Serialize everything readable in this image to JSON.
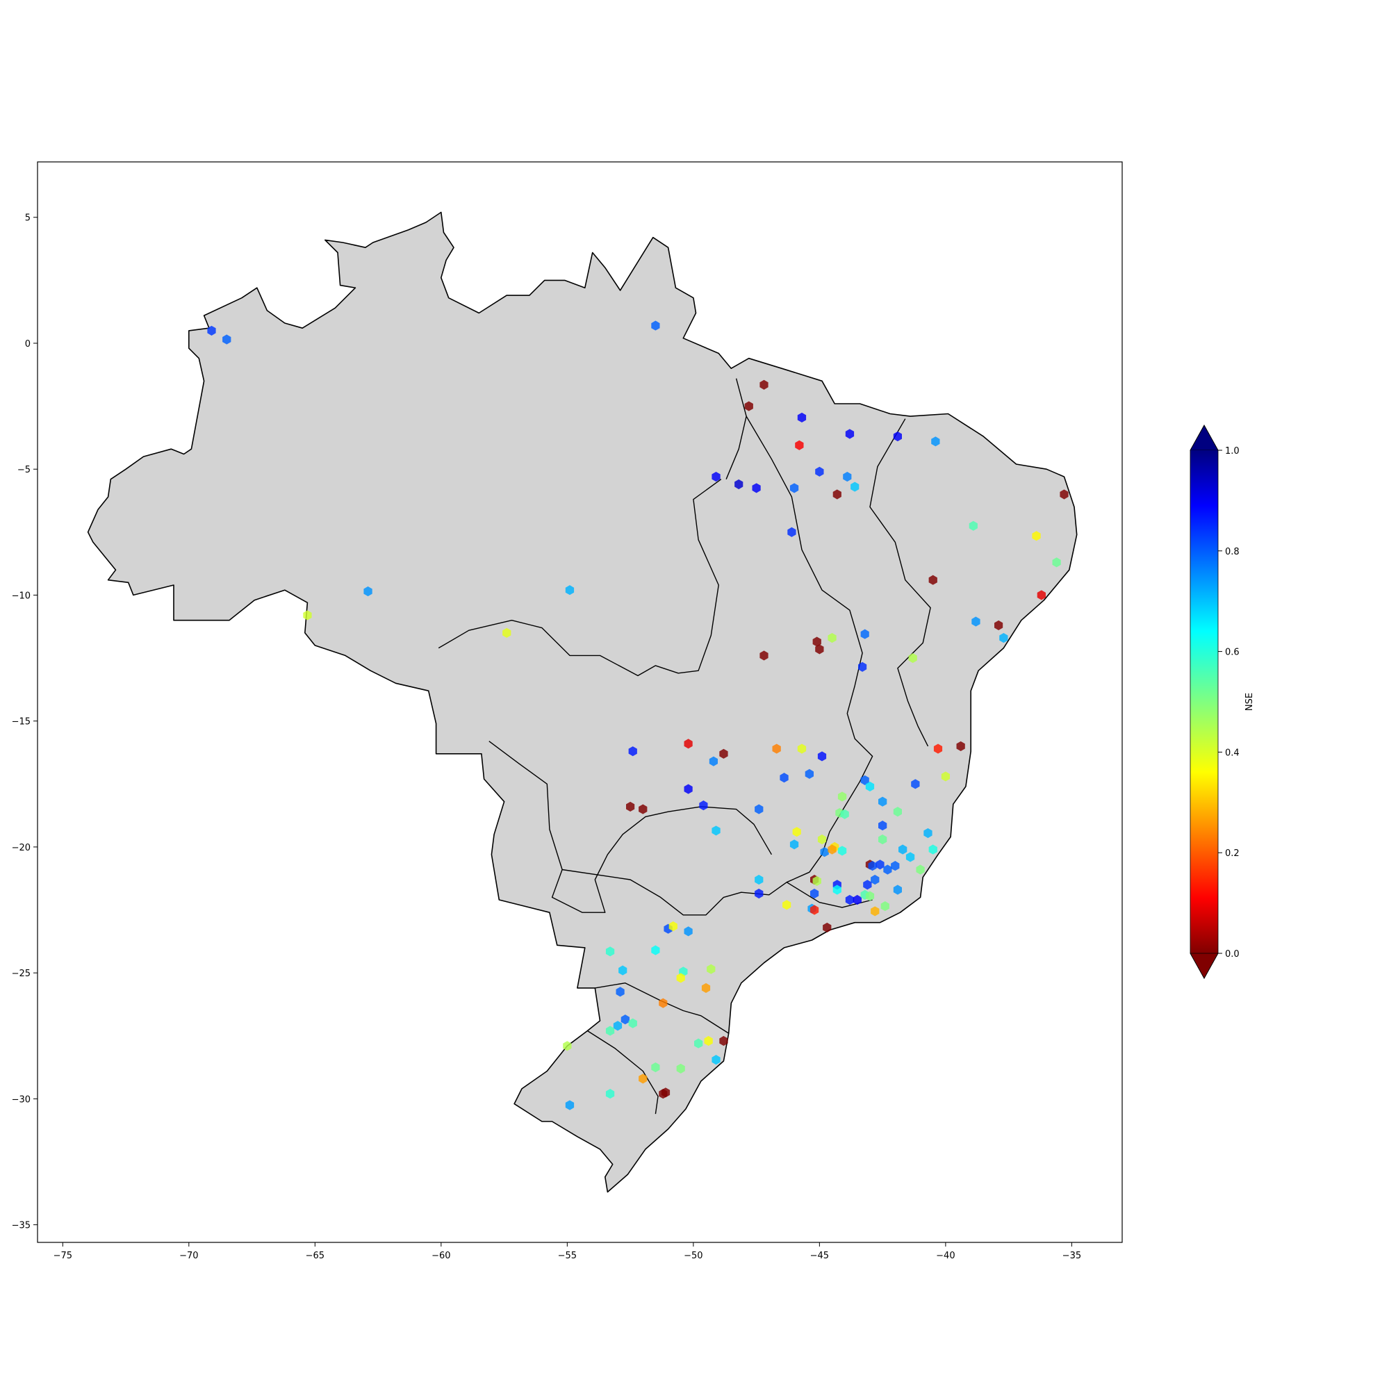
{
  "chart_data": {
    "type": "scatter",
    "title": "",
    "xlabel": "",
    "ylabel": "",
    "xlim": [
      -76,
      -33
    ],
    "ylim": [
      -35.7,
      7.2
    ],
    "x_ticks": [
      {
        "value": -75,
        "label": "−75"
      },
      {
        "value": -70,
        "label": "−70"
      },
      {
        "value": -65,
        "label": "−65"
      },
      {
        "value": -60,
        "label": "−60"
      },
      {
        "value": -55,
        "label": "−55"
      },
      {
        "value": -50,
        "label": "−50"
      },
      {
        "value": -45,
        "label": "−45"
      },
      {
        "value": -40,
        "label": "−40"
      },
      {
        "value": -35,
        "label": "−35"
      }
    ],
    "y_ticks": [
      {
        "value": 5,
        "label": "5"
      },
      {
        "value": 0,
        "label": "0"
      },
      {
        "value": -5,
        "label": "−5"
      },
      {
        "value": -10,
        "label": "−10"
      },
      {
        "value": -15,
        "label": "−15"
      },
      {
        "value": -20,
        "label": "−20"
      },
      {
        "value": -25,
        "label": "−25"
      },
      {
        "value": -30,
        "label": "−30"
      },
      {
        "value": -35,
        "label": "−35"
      }
    ],
    "grid": false,
    "basemap": {
      "fill": "#d3d3d3",
      "edge": "#000000"
    },
    "colorbar": {
      "label": "NSE",
      "colormap": "jet",
      "vmin": 0.0,
      "vmax": 1.0,
      "extend": "both",
      "placement": "right",
      "ticks": [
        {
          "value": 0.0,
          "label": "0.0"
        },
        {
          "value": 0.2,
          "label": "0.2"
        },
        {
          "value": 0.4,
          "label": "0.4"
        },
        {
          "value": 0.6,
          "label": "0.6"
        },
        {
          "value": 0.8,
          "label": "0.8"
        },
        {
          "value": 1.0,
          "label": "1.0"
        }
      ]
    },
    "marker": "hexagon",
    "points": [
      {
        "lon": -69.1,
        "lat": 0.5,
        "nse": 0.82
      },
      {
        "lon": -68.5,
        "lat": 0.15,
        "nse": 0.78
      },
      {
        "lon": -51.5,
        "lat": 0.7,
        "nse": 0.78
      },
      {
        "lon": -47.2,
        "lat": -1.65,
        "nse": -0.05
      },
      {
        "lon": -47.8,
        "lat": -2.5,
        "nse": -0.05
      },
      {
        "lon": -45.7,
        "lat": -2.95,
        "nse": 0.88
      },
      {
        "lon": -45.8,
        "lat": -4.05,
        "nse": 0.12
      },
      {
        "lon": -43.8,
        "lat": -3.6,
        "nse": 0.88
      },
      {
        "lon": -41.9,
        "lat": -3.7,
        "nse": 0.88
      },
      {
        "lon": -40.4,
        "lat": -3.9,
        "nse": 0.73
      },
      {
        "lon": -49.1,
        "lat": -5.3,
        "nse": 0.88
      },
      {
        "lon": -48.2,
        "lat": -5.6,
        "nse": 0.92
      },
      {
        "lon": -47.5,
        "lat": -5.75,
        "nse": 0.88
      },
      {
        "lon": -46.0,
        "lat": -5.75,
        "nse": 0.78
      },
      {
        "lon": -45.0,
        "lat": -5.1,
        "nse": 0.83
      },
      {
        "lon": -44.3,
        "lat": -6.0,
        "nse": -0.05
      },
      {
        "lon": -43.9,
        "lat": -5.3,
        "nse": 0.75
      },
      {
        "lon": -43.6,
        "lat": -5.7,
        "nse": 0.68
      },
      {
        "lon": -35.3,
        "lat": -6.0,
        "nse": -0.05
      },
      {
        "lon": -46.1,
        "lat": -7.5,
        "nse": 0.83
      },
      {
        "lon": -38.9,
        "lat": -7.25,
        "nse": 0.55
      },
      {
        "lon": -36.4,
        "lat": -7.65,
        "nse": 0.37
      },
      {
        "lon": -35.6,
        "lat": -8.7,
        "nse": 0.52
      },
      {
        "lon": -40.5,
        "lat": -9.4,
        "nse": -0.05
      },
      {
        "lon": -36.2,
        "lat": -10.0,
        "nse": 0.1
      },
      {
        "lon": -62.9,
        "lat": -9.85,
        "nse": 0.73
      },
      {
        "lon": -54.9,
        "lat": -9.8,
        "nse": 0.7
      },
      {
        "lon": -65.3,
        "lat": -10.8,
        "nse": 0.42
      },
      {
        "lon": -57.4,
        "lat": -11.5,
        "nse": 0.4
      },
      {
        "lon": -38.8,
        "lat": -11.05,
        "nse": 0.73
      },
      {
        "lon": -37.9,
        "lat": -11.2,
        "nse": -0.05
      },
      {
        "lon": -37.7,
        "lat": -11.7,
        "nse": 0.7
      },
      {
        "lon": -45.1,
        "lat": -11.85,
        "nse": -0.05
      },
      {
        "lon": -45.0,
        "lat": -12.15,
        "nse": -0.05
      },
      {
        "lon": -44.5,
        "lat": -11.7,
        "nse": 0.45
      },
      {
        "lon": -43.2,
        "lat": -11.55,
        "nse": 0.77
      },
      {
        "lon": -47.2,
        "lat": -12.4,
        "nse": -0.05
      },
      {
        "lon": -43.3,
        "lat": -12.85,
        "nse": 0.83
      },
      {
        "lon": -41.3,
        "lat": -12.5,
        "nse": 0.45
      },
      {
        "lon": -52.4,
        "lat": -16.2,
        "nse": 0.85
      },
      {
        "lon": -50.2,
        "lat": -15.9,
        "nse": 0.1
      },
      {
        "lon": -48.8,
        "lat": -16.3,
        "nse": -0.05
      },
      {
        "lon": -49.2,
        "lat": -16.6,
        "nse": 0.75
      },
      {
        "lon": -46.7,
        "lat": -16.1,
        "nse": 0.25
      },
      {
        "lon": -45.7,
        "lat": -16.1,
        "nse": 0.4
      },
      {
        "lon": -44.9,
        "lat": -16.4,
        "nse": 0.86
      },
      {
        "lon": -46.4,
        "lat": -17.25,
        "nse": 0.8
      },
      {
        "lon": -45.4,
        "lat": -17.1,
        "nse": 0.78
      },
      {
        "lon": -40.3,
        "lat": -16.1,
        "nse": 0.15
      },
      {
        "lon": -39.4,
        "lat": -16.0,
        "nse": -0.05
      },
      {
        "lon": -40.0,
        "lat": -17.2,
        "nse": 0.42
      },
      {
        "lon": -41.2,
        "lat": -17.5,
        "nse": 0.8
      },
      {
        "lon": -43.2,
        "lat": -17.35,
        "nse": 0.78
      },
      {
        "lon": -43.0,
        "lat": -17.6,
        "nse": 0.65
      },
      {
        "lon": -44.1,
        "lat": -18.0,
        "nse": 0.48
      },
      {
        "lon": -52.5,
        "lat": -18.4,
        "nse": -0.05
      },
      {
        "lon": -52.0,
        "lat": -18.5,
        "nse": -0.05
      },
      {
        "lon": -50.2,
        "lat": -17.7,
        "nse": 0.88
      },
      {
        "lon": -49.6,
        "lat": -18.35,
        "nse": 0.85
      },
      {
        "lon": -47.4,
        "lat": -18.5,
        "nse": 0.78
      },
      {
        "lon": -44.2,
        "lat": -18.65,
        "nse": 0.5
      },
      {
        "lon": -44.0,
        "lat": -18.7,
        "nse": 0.55
      },
      {
        "lon": -42.5,
        "lat": -18.2,
        "nse": 0.73
      },
      {
        "lon": -41.9,
        "lat": -18.6,
        "nse": 0.52
      },
      {
        "lon": -42.5,
        "lat": -19.15,
        "nse": 0.8
      },
      {
        "lon": -40.7,
        "lat": -19.45,
        "nse": 0.7
      },
      {
        "lon": -49.1,
        "lat": -19.35,
        "nse": 0.68
      },
      {
        "lon": -45.9,
        "lat": -19.4,
        "nse": 0.38
      },
      {
        "lon": -46.0,
        "lat": -19.9,
        "nse": 0.7
      },
      {
        "lon": -44.9,
        "lat": -19.7,
        "nse": 0.42
      },
      {
        "lon": -44.8,
        "lat": -20.2,
        "nse": 0.75
      },
      {
        "lon": -44.4,
        "lat": -20.0,
        "nse": 0.35
      },
      {
        "lon": -44.5,
        "lat": -20.1,
        "nse": 0.28
      },
      {
        "lon": -44.1,
        "lat": -20.15,
        "nse": 0.6
      },
      {
        "lon": -42.5,
        "lat": -19.7,
        "nse": 0.52
      },
      {
        "lon": -41.7,
        "lat": -20.1,
        "nse": 0.7
      },
      {
        "lon": -41.4,
        "lat": -20.4,
        "nse": 0.68
      },
      {
        "lon": -40.5,
        "lat": -20.1,
        "nse": 0.6
      },
      {
        "lon": -41.0,
        "lat": -20.9,
        "nse": 0.5
      },
      {
        "lon": -43.0,
        "lat": -20.7,
        "nse": -0.05
      },
      {
        "lon": -42.9,
        "lat": -20.75,
        "nse": 0.8
      },
      {
        "lon": -42.6,
        "lat": -20.7,
        "nse": 0.82
      },
      {
        "lon": -42.3,
        "lat": -20.9,
        "nse": 0.78
      },
      {
        "lon": -42.0,
        "lat": -20.75,
        "nse": 0.78
      },
      {
        "lon": -42.8,
        "lat": -21.3,
        "nse": 0.78
      },
      {
        "lon": -43.1,
        "lat": -21.5,
        "nse": 0.83
      },
      {
        "lon": -44.3,
        "lat": -21.5,
        "nse": 0.85
      },
      {
        "lon": -45.2,
        "lat": -21.3,
        "nse": -0.05
      },
      {
        "lon": -45.1,
        "lat": -21.35,
        "nse": 0.45
      },
      {
        "lon": -47.4,
        "lat": -21.3,
        "nse": 0.68
      },
      {
        "lon": -47.4,
        "lat": -21.85,
        "nse": 0.85
      },
      {
        "lon": -44.3,
        "lat": -21.7,
        "nse": 0.62
      },
      {
        "lon": -45.2,
        "lat": -21.85,
        "nse": 0.8
      },
      {
        "lon": -41.9,
        "lat": -21.7,
        "nse": 0.73
      },
      {
        "lon": -43.8,
        "lat": -22.1,
        "nse": 0.85
      },
      {
        "lon": -43.5,
        "lat": -22.1,
        "nse": 0.88
      },
      {
        "lon": -43.2,
        "lat": -21.9,
        "nse": 0.55
      },
      {
        "lon": -43.0,
        "lat": -21.95,
        "nse": 0.5
      },
      {
        "lon": -42.4,
        "lat": -22.35,
        "nse": 0.5
      },
      {
        "lon": -46.3,
        "lat": -22.3,
        "nse": 0.38
      },
      {
        "lon": -45.3,
        "lat": -22.45,
        "nse": 0.72
      },
      {
        "lon": -45.2,
        "lat": -22.5,
        "nse": 0.15
      },
      {
        "lon": -42.8,
        "lat": -22.55,
        "nse": 0.3
      },
      {
        "lon": -44.7,
        "lat": -23.2,
        "nse": -0.05
      },
      {
        "lon": -51.0,
        "lat": -23.25,
        "nse": 0.8
      },
      {
        "lon": -50.8,
        "lat": -23.15,
        "nse": 0.38
      },
      {
        "lon": -50.2,
        "lat": -23.35,
        "nse": 0.73
      },
      {
        "lon": -53.3,
        "lat": -24.15,
        "nse": 0.58
      },
      {
        "lon": -51.5,
        "lat": -24.1,
        "nse": 0.62
      },
      {
        "lon": -52.8,
        "lat": -24.9,
        "nse": 0.68
      },
      {
        "lon": -50.4,
        "lat": -24.95,
        "nse": 0.58
      },
      {
        "lon": -50.5,
        "lat": -25.2,
        "nse": 0.38
      },
      {
        "lon": -49.3,
        "lat": -24.85,
        "nse": 0.45
      },
      {
        "lon": -49.5,
        "lat": -25.6,
        "nse": 0.28
      },
      {
        "lon": -52.9,
        "lat": -25.75,
        "nse": 0.78
      },
      {
        "lon": -51.2,
        "lat": -26.2,
        "nse": 0.25
      },
      {
        "lon": -52.7,
        "lat": -26.85,
        "nse": 0.78
      },
      {
        "lon": -53.0,
        "lat": -27.1,
        "nse": 0.7
      },
      {
        "lon": -52.4,
        "lat": -27.0,
        "nse": 0.55
      },
      {
        "lon": -53.3,
        "lat": -27.3,
        "nse": 0.55
      },
      {
        "lon": -49.8,
        "lat": -27.8,
        "nse": 0.55
      },
      {
        "lon": -49.4,
        "lat": -27.7,
        "nse": 0.38
      },
      {
        "lon": -48.8,
        "lat": -27.7,
        "nse": -0.05
      },
      {
        "lon": -55.0,
        "lat": -27.9,
        "nse": 0.45
      },
      {
        "lon": -51.5,
        "lat": -28.75,
        "nse": 0.52
      },
      {
        "lon": -50.5,
        "lat": -28.8,
        "nse": 0.5
      },
      {
        "lon": -49.1,
        "lat": -28.45,
        "nse": 0.68
      },
      {
        "lon": -52.0,
        "lat": -29.2,
        "nse": 0.28
      },
      {
        "lon": -51.1,
        "lat": -29.75,
        "nse": -0.05
      },
      {
        "lon": -51.2,
        "lat": -29.8,
        "nse": -0.05
      },
      {
        "lon": -53.3,
        "lat": -29.8,
        "nse": 0.58
      },
      {
        "lon": -54.9,
        "lat": -30.25,
        "nse": 0.72
      }
    ]
  }
}
